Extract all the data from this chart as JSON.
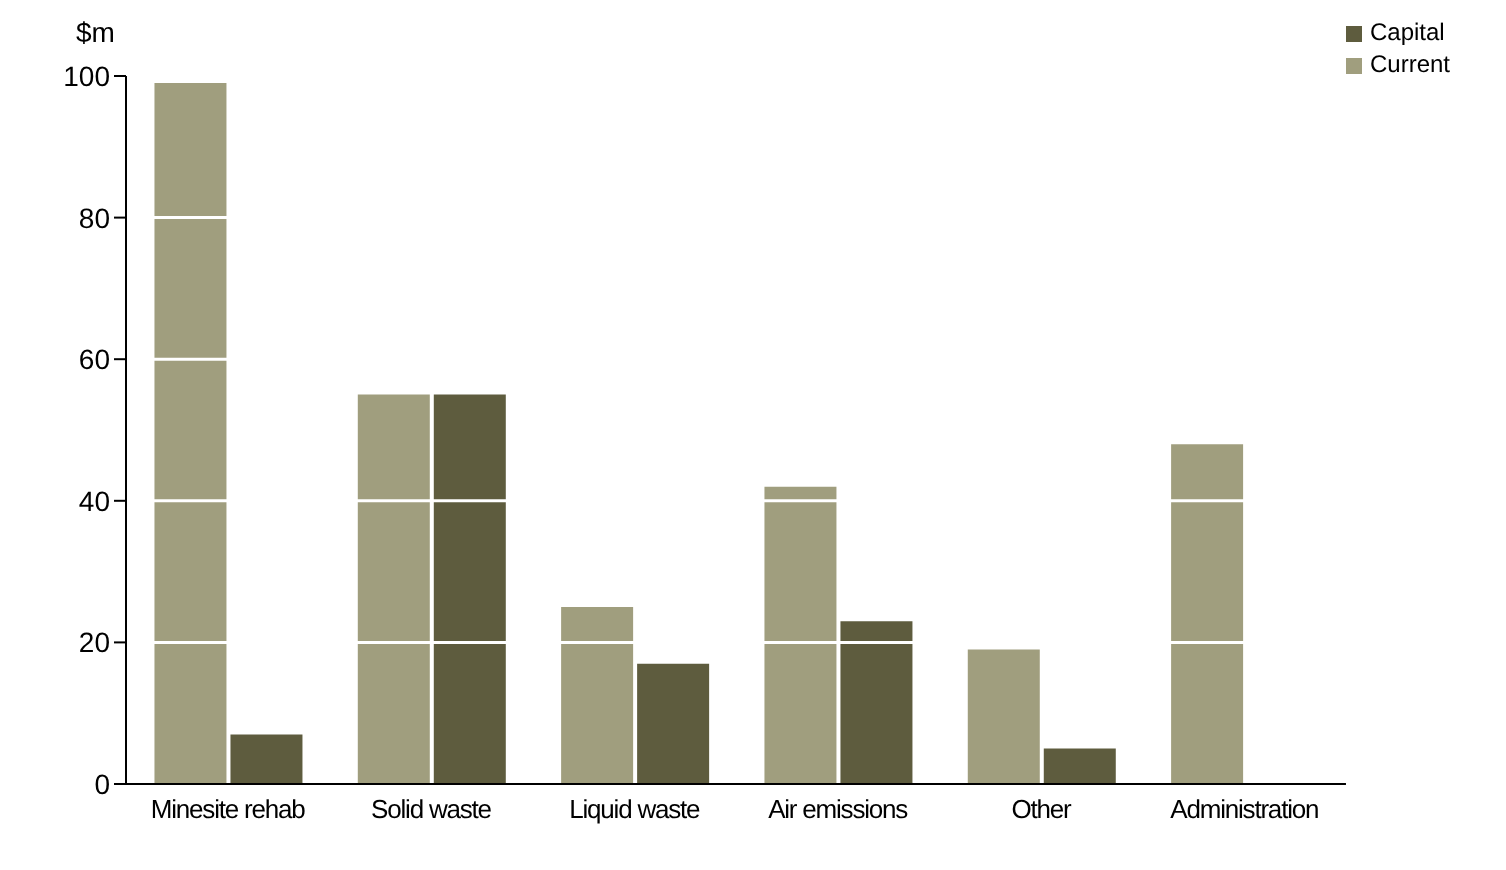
{
  "chart_data": {
    "type": "bar",
    "ylabel": "$m",
    "categories": [
      "Minesite rehab",
      "Solid waste",
      "Liquid waste",
      "Air emissions",
      "Other",
      "Administration"
    ],
    "series": [
      {
        "name": "Current",
        "color": "#a09e7e",
        "values": [
          99,
          55,
          25,
          42,
          19,
          48
        ]
      },
      {
        "name": "Capital",
        "color": "#5e5c3e",
        "values": [
          7,
          55,
          17,
          23,
          5,
          null
        ]
      }
    ],
    "ylim": [
      0,
      100
    ],
    "yticks": [
      0,
      20,
      40,
      60,
      80,
      100
    ],
    "grid": "y",
    "legend": "top right"
  }
}
